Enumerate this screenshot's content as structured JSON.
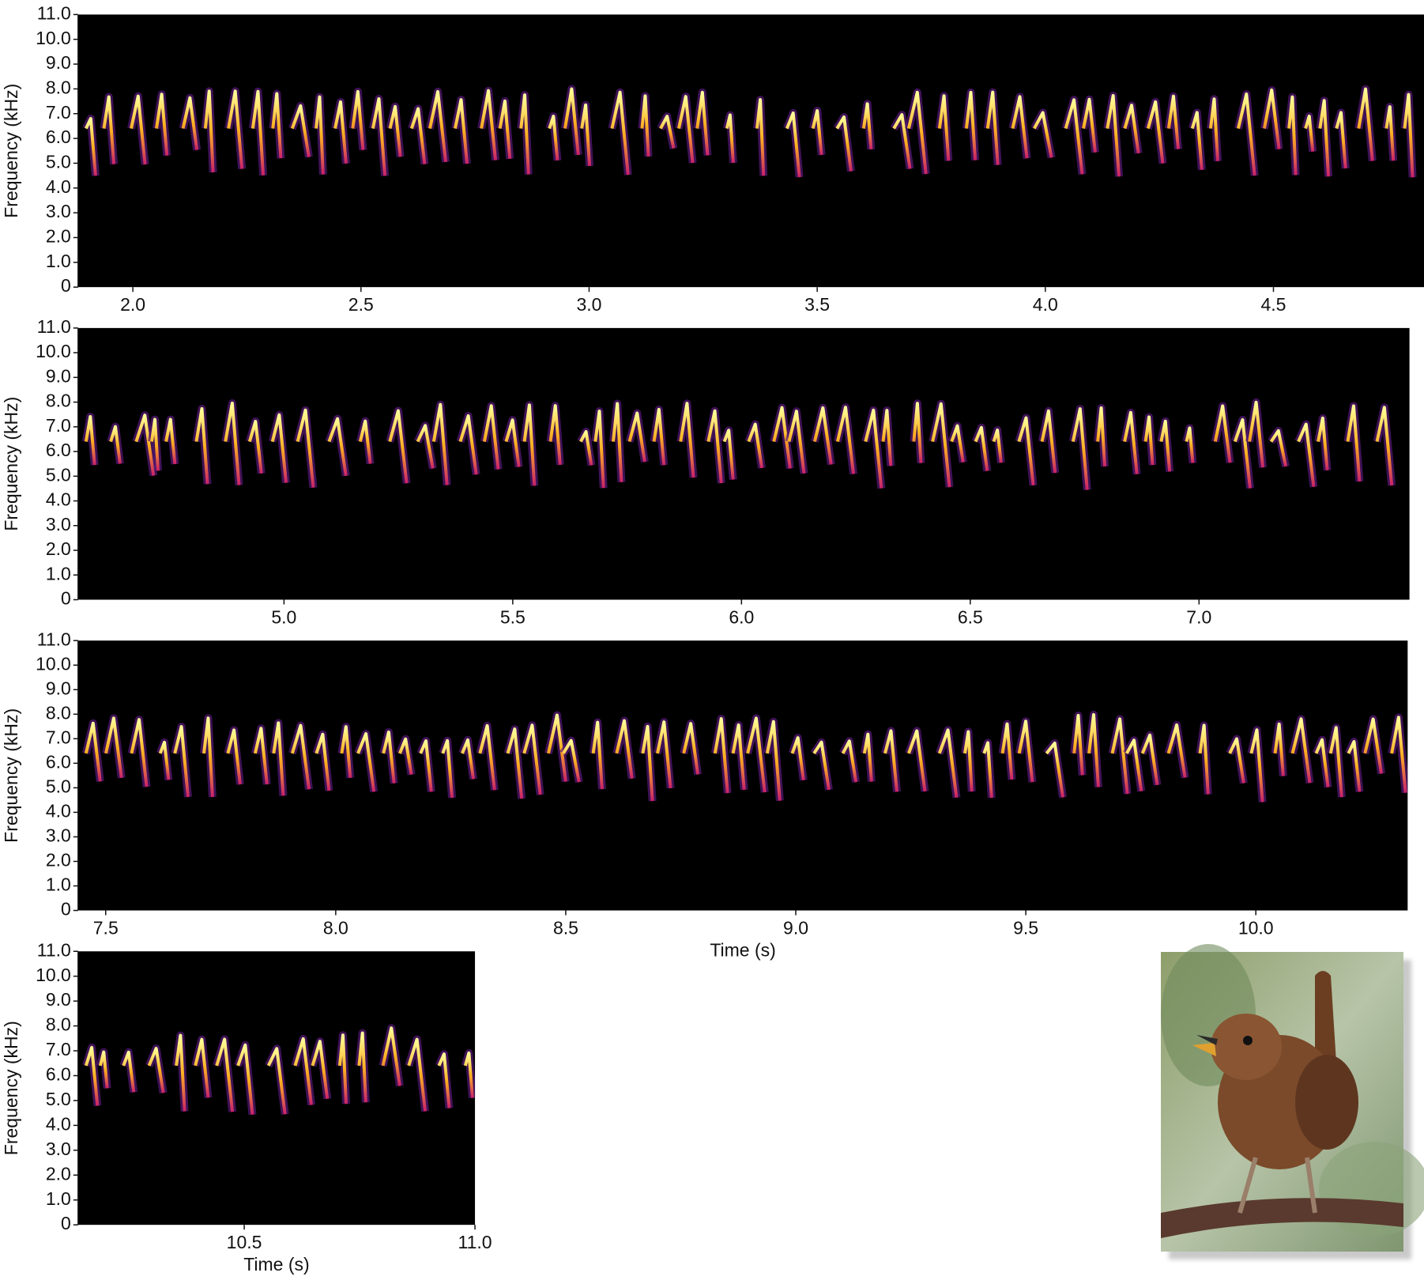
{
  "chart_data": [
    {
      "type": "spectrogram",
      "ylabel": "Frequency (kHz)",
      "xlim": [
        1.88,
        4.83
      ],
      "ylim": [
        0,
        11
      ],
      "xticks": [
        {
          "value": 2,
          "label": "2.0"
        },
        2.5,
        {
          "value": 3,
          "label": "3.0"
        },
        3.5,
        {
          "value": 4,
          "label": "4.0"
        },
        4.5
      ],
      "yticks": [
        0,
        {
          "value": 1,
          "label": "1.0"
        },
        {
          "value": 2,
          "label": "2.0"
        },
        {
          "value": 3,
          "label": "3.0"
        },
        {
          "value": 4,
          "label": "4.0"
        },
        {
          "value": 5,
          "label": "5.0"
        },
        {
          "value": 6,
          "label": "6.0"
        },
        {
          "value": 7,
          "label": "7.0"
        },
        {
          "value": 8,
          "label": "8.0"
        },
        {
          "value": 9,
          "label": "9.0"
        },
        {
          "value": 10,
          "label": "10.0"
        },
        {
          "value": 11,
          "label": "11.0"
        }
      ]
    },
    {
      "type": "spectrogram",
      "ylabel": "Frequency (kHz)",
      "xlim": [
        4.55,
        7.46
      ],
      "ylim": [
        0,
        11
      ],
      "xticks": [
        {
          "value": 5,
          "label": "5.0"
        },
        5.5,
        {
          "value": 6,
          "label": "6.0"
        },
        6.5,
        {
          "value": 7,
          "label": "7.0"
        }
      ],
      "yticks": [
        0,
        {
          "value": 1,
          "label": "1.0"
        },
        {
          "value": 2,
          "label": "2.0"
        },
        {
          "value": 3,
          "label": "3.0"
        },
        {
          "value": 4,
          "label": "4.0"
        },
        {
          "value": 5,
          "label": "5.0"
        },
        {
          "value": 6,
          "label": "6.0"
        },
        {
          "value": 7,
          "label": "7.0"
        },
        {
          "value": 8,
          "label": "8.0"
        },
        {
          "value": 9,
          "label": "9.0"
        },
        {
          "value": 10,
          "label": "10.0"
        },
        {
          "value": 11,
          "label": "11.0"
        }
      ]
    },
    {
      "type": "spectrogram",
      "ylabel": "Frequency (kHz)",
      "xlabel": "Time (s)",
      "xlim": [
        7.44,
        10.33
      ],
      "ylim": [
        0,
        11
      ],
      "xticks": [
        7.5,
        {
          "value": 8,
          "label": "8.0"
        },
        8.5,
        {
          "value": 9,
          "label": "9.0"
        },
        9.5,
        {
          "value": 10,
          "label": "10.0"
        }
      ],
      "yticks": [
        0,
        {
          "value": 1,
          "label": "1.0"
        },
        {
          "value": 2,
          "label": "2.0"
        },
        {
          "value": 3,
          "label": "3.0"
        },
        {
          "value": 4,
          "label": "4.0"
        },
        {
          "value": 5,
          "label": "5.0"
        },
        {
          "value": 6,
          "label": "6.0"
        },
        {
          "value": 7,
          "label": "7.0"
        },
        {
          "value": 8,
          "label": "8.0"
        },
        {
          "value": 9,
          "label": "9.0"
        },
        {
          "value": 10,
          "label": "10.0"
        },
        {
          "value": 11,
          "label": "11.0"
        }
      ]
    },
    {
      "type": "spectrogram",
      "ylabel": "Frequency (kHz)",
      "xlabel": "Time (s)",
      "xlim": [
        10.14,
        11
      ],
      "ylim": [
        0,
        11
      ],
      "xticks": [
        10.5,
        {
          "value": 11,
          "label": "11.0"
        }
      ],
      "yticks": [
        0,
        {
          "value": 1,
          "label": "1.0"
        },
        {
          "value": 2,
          "label": "2.0"
        },
        {
          "value": 3,
          "label": "3.0"
        },
        {
          "value": 4,
          "label": "4.0"
        },
        {
          "value": 5,
          "label": "5.0"
        },
        {
          "value": 6,
          "label": "6.0"
        },
        {
          "value": 7,
          "label": "7.0"
        },
        {
          "value": 8,
          "label": "8.0"
        },
        {
          "value": 9,
          "label": "9.0"
        },
        {
          "value": 10,
          "label": "10.0"
        },
        {
          "value": 11,
          "label": "11.0"
        }
      ]
    }
  ]
}
